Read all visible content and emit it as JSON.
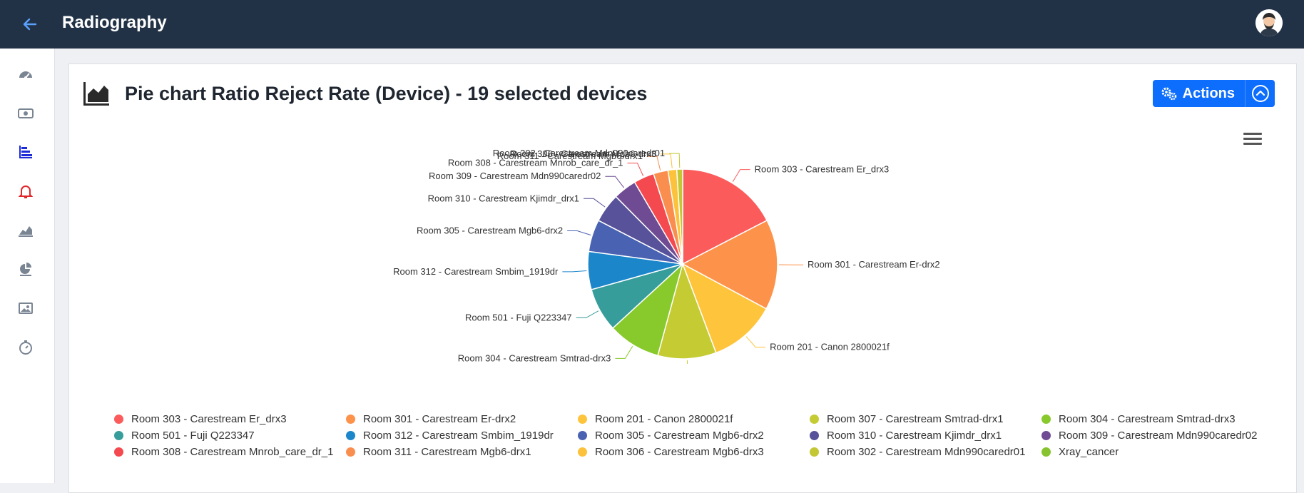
{
  "header": {
    "title": "Radiography"
  },
  "sidebar": {
    "items": [
      {
        "icon": "dashboard-gauge-icon"
      },
      {
        "icon": "money-icon"
      },
      {
        "icon": "bar-chart-icon",
        "color": "#1c2bd6"
      },
      {
        "icon": "bell-icon",
        "color": "#e0262b"
      },
      {
        "icon": "area-chart-monitor-icon"
      },
      {
        "icon": "pie-chart-icon"
      },
      {
        "icon": "image-icon"
      },
      {
        "icon": "stopwatch-icon"
      }
    ]
  },
  "card": {
    "title": "Pie chart Ratio Reject Rate (Device) - 19 selected devices",
    "actions_label": "Actions"
  },
  "chart_data": {
    "type": "pie",
    "legend_position": "bottom",
    "series": [
      {
        "name": "Room 303 - Carestream Er_drx3",
        "value": 17.5,
        "color": "#fc5b5b"
      },
      {
        "name": "Room 301 - Carestream Er-drx2",
        "value": 15.5,
        "color": "#fd924a"
      },
      {
        "name": "Room 201 - Canon 2800021f",
        "value": 11.5,
        "color": "#fec43c"
      },
      {
        "name": "Room 307 - Carestream Smtrad-drx1",
        "value": 10.0,
        "color": "#c5cb33"
      },
      {
        "name": "Room 304 - Carestream Smtrad-drx3",
        "value": 9.0,
        "color": "#88c92c"
      },
      {
        "name": "Room 501 - Fuji Q223347",
        "value": 7.5,
        "color": "#379d9b"
      },
      {
        "name": "Room 312 - Carestream Smbim_1919dr",
        "value": 6.5,
        "color": "#1c86ca"
      },
      {
        "name": "Room 305 - Carestream Mgb6-drx2",
        "value": 5.5,
        "color": "#4a62b2"
      },
      {
        "name": "Room 310 - Carestream Kjimdr_drx1",
        "value": 5.0,
        "color": "#575299"
      },
      {
        "name": "Room 309 - Carestream Mdn990caredr02",
        "value": 4.0,
        "color": "#6f4b93"
      },
      {
        "name": "Room 308 - Carestream Mnrob_care_dr_1",
        "value": 3.5,
        "color": "#f4494f"
      },
      {
        "name": "Room 311 - Carestream Mgb6-drx1",
        "value": 2.5,
        "color": "#fa8e4f"
      },
      {
        "name": "Room 306 - Carestream Mgb6-drx3",
        "value": 1.5,
        "color": "#fcc23b"
      },
      {
        "name": "Room 302 - Carestream Mdn990caredr01",
        "value": 1.0,
        "color": "#c2c733"
      },
      {
        "name": "Xray_cancer",
        "value": 0.0,
        "color": "#86c32e"
      }
    ]
  }
}
